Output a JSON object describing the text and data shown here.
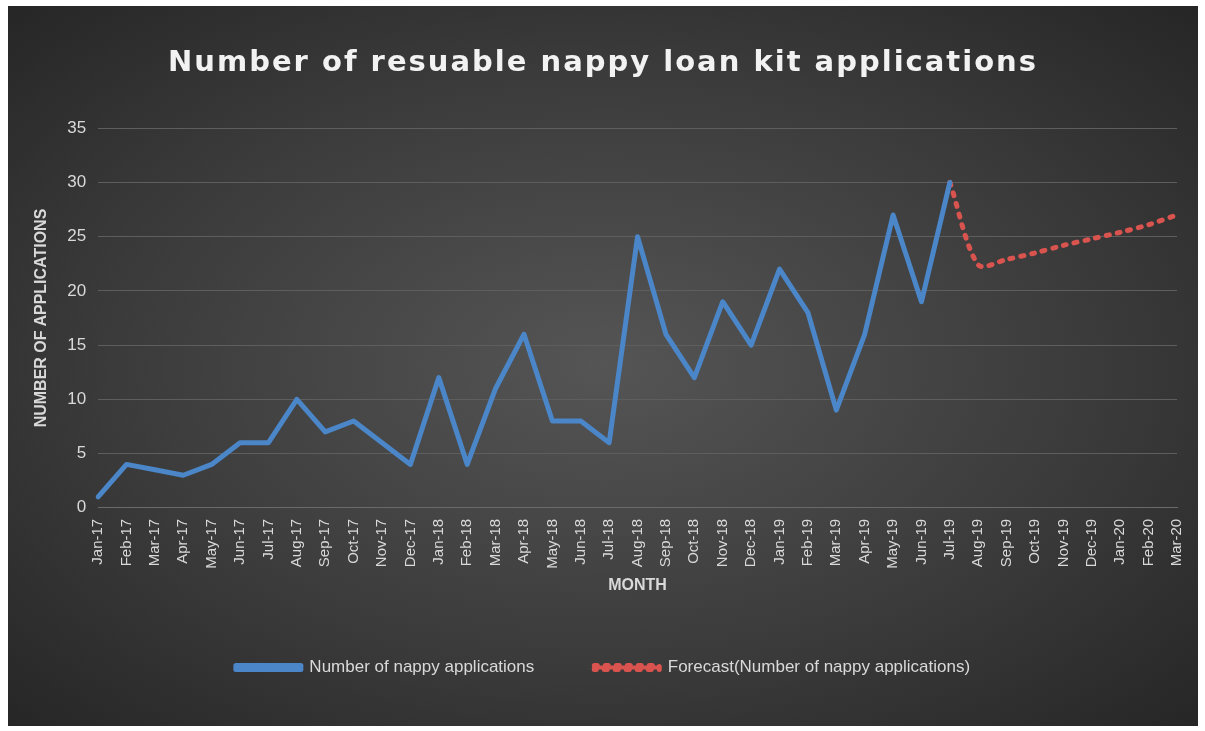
{
  "chart_data": {
    "type": "line",
    "title": "Number of resuable nappy loan kit applications",
    "xlabel": "MONTH",
    "ylabel": "NUMBER OF APPLICATIONS",
    "categories": [
      "Jan-17",
      "Feb-17",
      "Mar-17",
      "Apr-17",
      "May-17",
      "Jun-17",
      "Jul-17",
      "Aug-17",
      "Sep-17",
      "Oct-17",
      "Nov-17",
      "Dec-17",
      "Jan-18",
      "Feb-18",
      "Mar-18",
      "Apr-18",
      "May-18",
      "Jun-18",
      "Jul-18",
      "Aug-18",
      "Sep-18",
      "Oct-18",
      "Nov-18",
      "Dec-18",
      "Jan-19",
      "Feb-19",
      "Mar-19",
      "Apr-19",
      "May-19",
      "Jun-19",
      "Jul-19",
      "Aug-19",
      "Sep-19",
      "Oct-19",
      "Nov-19",
      "Dec-19",
      "Jan-20",
      "Feb-20",
      "Mar-20"
    ],
    "series": [
      {
        "name": "Number of nappy applications",
        "color": "#4a86c8",
        "line_style": "solid",
        "values": [
          1,
          4,
          3.5,
          3,
          4,
          6,
          6,
          10,
          7,
          8,
          6,
          4,
          12,
          4,
          11,
          16,
          8,
          8,
          6,
          25,
          16,
          12,
          19,
          15,
          22,
          18,
          9,
          16,
          27,
          19,
          30,
          null,
          null,
          null,
          null,
          null,
          null,
          null,
          null
        ]
      },
      {
        "name": "Forecast(Number of nappy applications)",
        "color": "#d9534f",
        "line_style": "dotted",
        "values": [
          null,
          null,
          null,
          null,
          null,
          null,
          null,
          null,
          null,
          null,
          null,
          null,
          null,
          null,
          null,
          null,
          null,
          null,
          null,
          null,
          null,
          null,
          null,
          null,
          null,
          null,
          null,
          null,
          null,
          null,
          30,
          22.4,
          22.9,
          23.5,
          24.2,
          24.8,
          25.4,
          26.1,
          27
        ]
      }
    ],
    "ylim": [
      0,
      35
    ],
    "yticks": [
      0,
      5,
      10,
      15,
      20,
      25,
      30,
      35
    ],
    "grid": "y",
    "legend": "bottom",
    "marker": "none"
  }
}
